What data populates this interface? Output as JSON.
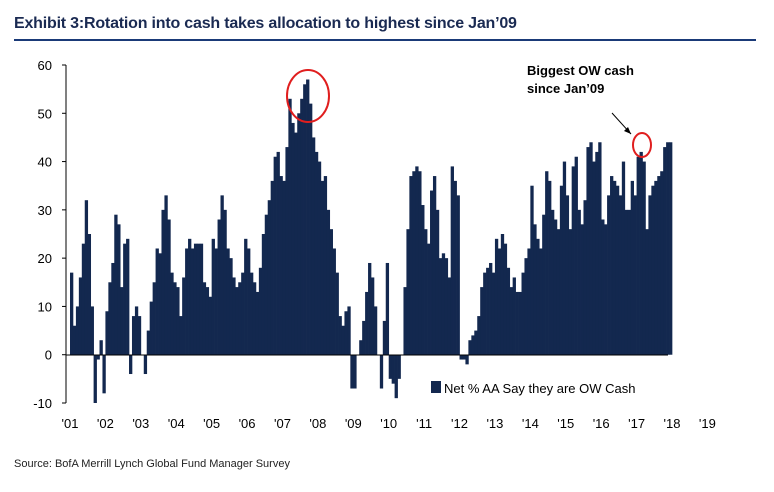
{
  "title": "Exhibit 3:Rotation into cash takes allocation to highest since Jan’09",
  "source": "Source:  BofA Merrill Lynch Global Fund Manager Survey",
  "colors": {
    "bar": "#13284f",
    "title": "#1a2a52",
    "rule": "#1a3a78",
    "circle": "#e01e1e"
  },
  "chart_data": {
    "type": "bar",
    "title": "Exhibit 3:Rotation into cash takes allocation to highest since Jan’09",
    "xlabel": "",
    "ylabel": "",
    "ylim": [
      -10,
      60
    ],
    "yticks": [
      60,
      50,
      40,
      30,
      20,
      10,
      0,
      -10
    ],
    "xticks": [
      "'01",
      "'02",
      "'03",
      "'04",
      "'05",
      "'06",
      "'07",
      "'08",
      "'09",
      "'10",
      "'11",
      "'12",
      "'13",
      "'14",
      "'15",
      "'16",
      "'17",
      "'18",
      "'19"
    ],
    "grid": false,
    "legend_position": "bottom-right",
    "series": [
      {
        "name": "Net % AA Say they are OW Cash",
        "start": "2001-01",
        "frequency": "monthly",
        "values": [
          17,
          6,
          10,
          16,
          23,
          32,
          25,
          10,
          -10,
          -1,
          3,
          -8,
          9,
          15,
          19,
          29,
          27,
          14,
          23,
          24,
          -4,
          8,
          10,
          8,
          0,
          -4,
          5,
          11,
          15,
          22,
          21,
          30,
          33,
          28,
          17,
          15,
          14,
          8,
          16,
          22,
          24,
          22,
          23,
          23,
          23,
          15,
          14,
          12,
          24,
          22,
          28,
          33,
          30,
          22,
          20,
          16,
          14,
          15,
          17,
          24,
          22,
          17,
          15,
          13,
          18,
          25,
          29,
          32,
          36,
          41,
          42,
          37,
          36,
          43,
          53,
          48,
          46,
          50,
          53,
          56,
          57,
          52,
          45,
          42,
          40,
          36,
          37,
          30,
          26,
          22,
          17,
          8,
          6,
          9,
          10,
          -7,
          -7,
          0,
          3,
          7,
          13,
          19,
          16,
          10,
          0,
          -7,
          7,
          19,
          -5,
          -6,
          -9,
          -5,
          0,
          14,
          26,
          37,
          38,
          39,
          38,
          31,
          26,
          23,
          34,
          37,
          30,
          20,
          21,
          20,
          16,
          39,
          36,
          33,
          -1,
          -1,
          -2,
          3,
          4,
          5,
          8,
          14,
          17,
          18,
          19,
          17,
          24,
          22,
          25,
          23,
          18,
          14,
          16,
          13,
          13,
          17,
          20,
          22,
          35,
          27,
          24,
          22,
          29,
          38,
          36,
          30,
          28,
          26,
          35,
          40,
          33,
          26,
          39,
          41,
          30,
          27,
          32,
          43,
          44,
          40,
          42,
          44,
          28,
          27,
          33,
          37,
          36,
          35,
          33,
          40,
          30,
          30,
          36,
          33,
          41,
          42,
          40,
          26,
          33,
          35,
          36,
          37,
          38,
          43,
          44,
          44
        ]
      }
    ],
    "annotations": [
      {
        "text": "Biggest OW cash since Jan’09",
        "lines": [
          "Biggest OW cash",
          "since Jan’09"
        ]
      }
    ]
  }
}
